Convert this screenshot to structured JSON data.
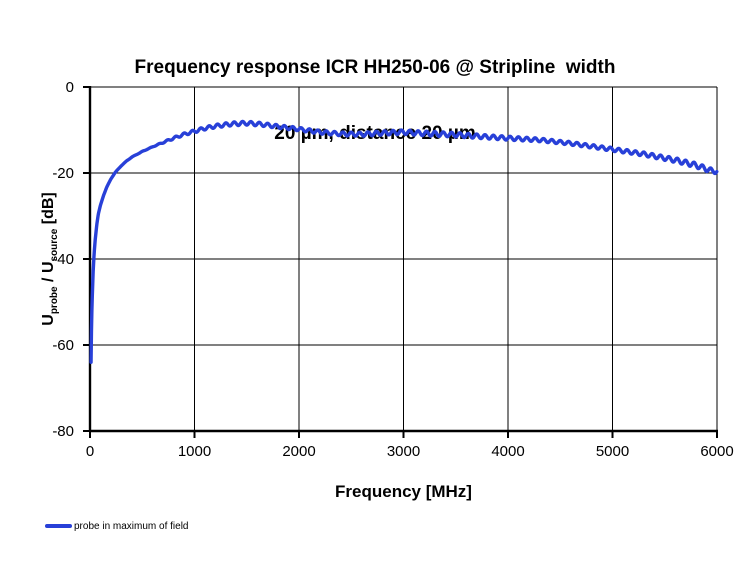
{
  "title": {
    "line1": "Frequency response ICR HH250-06 @ Stripline  width",
    "line2": "20 µm, distance 20 µm"
  },
  "axes": {
    "x": {
      "label": "Frequency [MHz]",
      "min": 0,
      "max": 6000,
      "ticks": [
        0,
        1000,
        2000,
        3000,
        4000,
        5000,
        6000
      ]
    },
    "y": {
      "label_parts": {
        "u1": "U",
        "sub1": "probe",
        "mid": " / U",
        "sub2": "source",
        "unit": " [dB]"
      },
      "min": -80,
      "max": 0,
      "ticks": [
        0,
        -20,
        -40,
        -60,
        -80
      ]
    }
  },
  "legend": {
    "items": [
      {
        "label": "probe in maximum of field",
        "color": "#2840d8"
      }
    ]
  },
  "colors": {
    "line": "#2840d8",
    "grid": "#000000",
    "axis": "#000000",
    "text": "#000000",
    "background": "#ffffff"
  },
  "chart_data": {
    "type": "line",
    "title": "Frequency response ICR HH250-06 @ Stripline width 20 µm, distance 20 µm",
    "xlabel": "Frequency [MHz]",
    "ylabel": "U_probe / U_source [dB]",
    "xlim": [
      0,
      6000
    ],
    "ylim": [
      -80,
      0
    ],
    "grid": true,
    "legend_position": "bottom-left",
    "series": [
      {
        "name": "probe in maximum of field",
        "color": "#2840d8",
        "points": [
          [
            10,
            -64
          ],
          [
            15,
            -55
          ],
          [
            20,
            -50
          ],
          [
            30,
            -43
          ],
          [
            40,
            -38.5
          ],
          [
            50,
            -35.5
          ],
          [
            65,
            -32
          ],
          [
            80,
            -29.5
          ],
          [
            100,
            -27.5
          ],
          [
            130,
            -25.2
          ],
          [
            160,
            -23.3
          ],
          [
            200,
            -21.4
          ],
          [
            240,
            -19.9
          ],
          [
            300,
            -18.3
          ],
          [
            350,
            -17.2
          ],
          [
            400,
            -16.3
          ],
          [
            500,
            -15.0
          ],
          [
            600,
            -13.9
          ],
          [
            700,
            -12.9
          ],
          [
            800,
            -11.9
          ],
          [
            900,
            -11.0
          ],
          [
            1000,
            -10.3
          ],
          [
            1100,
            -9.6
          ],
          [
            1200,
            -9.1
          ],
          [
            1350,
            -8.6
          ],
          [
            1500,
            -8.4
          ],
          [
            1650,
            -8.7
          ],
          [
            1800,
            -9.2
          ],
          [
            2000,
            -9.8
          ],
          [
            2200,
            -10.5
          ],
          [
            2400,
            -10.9
          ],
          [
            2600,
            -11.0
          ],
          [
            2800,
            -10.7
          ],
          [
            3000,
            -10.5
          ],
          [
            3200,
            -10.8
          ],
          [
            3500,
            -11.1
          ],
          [
            3800,
            -11.6
          ],
          [
            4000,
            -11.9
          ],
          [
            4300,
            -12.3
          ],
          [
            4600,
            -13.1
          ],
          [
            4800,
            -13.8
          ],
          [
            5000,
            -14.5
          ],
          [
            5300,
            -15.6
          ],
          [
            5600,
            -17.0
          ],
          [
            5800,
            -18.2
          ],
          [
            5950,
            -19.5
          ],
          [
            6000,
            -19.6
          ]
        ],
        "ripple": {
          "period_mhz": 80,
          "amplitude_db": [
            [
              0,
              0
            ],
            [
              600,
              0.05
            ],
            [
              800,
              0.25
            ],
            [
              1000,
              0.35
            ],
            [
              1400,
              0.45
            ],
            [
              2000,
              0.4
            ],
            [
              2500,
              0.45
            ],
            [
              3300,
              0.55
            ],
            [
              3700,
              0.5
            ],
            [
              4500,
              0.4
            ],
            [
              5200,
              0.45
            ],
            [
              5800,
              0.6
            ],
            [
              6000,
              0.55
            ]
          ]
        }
      }
    ]
  }
}
